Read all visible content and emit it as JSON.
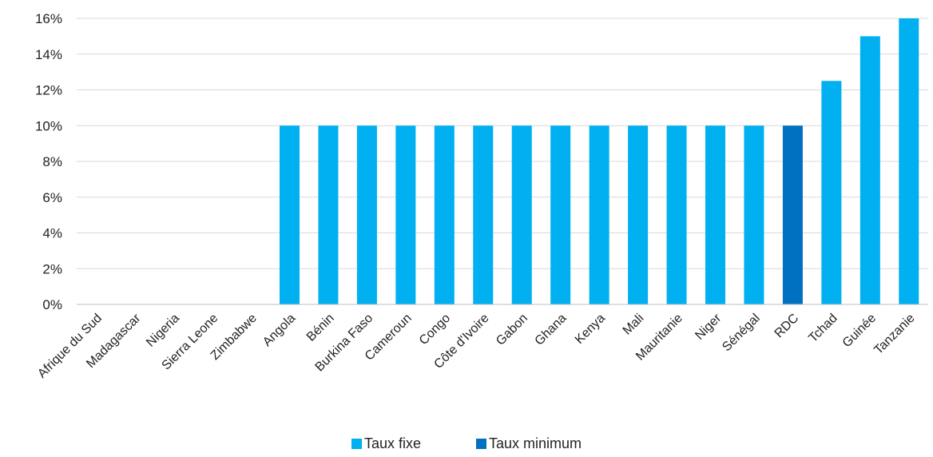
{
  "chart_data": {
    "type": "bar",
    "categories": [
      "Afrique du Sud",
      "Madagascar",
      "Nigeria",
      "Sierra Leone",
      "Zimbabwe",
      "Angola",
      "Bénin",
      "Burkina Faso",
      "Cameroun",
      "Congo",
      "Côte d'Ivoire",
      "Gabon",
      "Ghana",
      "Kenya",
      "Mali",
      "Mauritanie",
      "Niger",
      "Sénégal",
      "RDC",
      "Tchad",
      "Guinée",
      "Tanzanie"
    ],
    "series": [
      {
        "name": "Taux fixe",
        "color": "#00B0F0",
        "values": [
          0,
          0,
          0,
          0,
          0,
          10,
          10,
          10,
          10,
          10,
          10,
          10,
          10,
          10,
          10,
          10,
          10,
          10,
          0,
          12.5,
          15,
          16
        ]
      },
      {
        "name": "Taux minimum",
        "color": "#0070C0",
        "values": [
          0,
          0,
          0,
          0,
          0,
          0,
          0,
          0,
          0,
          0,
          0,
          0,
          0,
          0,
          0,
          0,
          0,
          0,
          10,
          0,
          0,
          0
        ]
      }
    ],
    "yticks": [
      "0%",
      "2%",
      "4%",
      "6%",
      "8%",
      "10%",
      "12%",
      "14%",
      "16%"
    ],
    "ylim": [
      0,
      16
    ],
    "title": "",
    "xlabel": "",
    "ylabel": "",
    "grid": true,
    "legend_position": "bottom"
  }
}
